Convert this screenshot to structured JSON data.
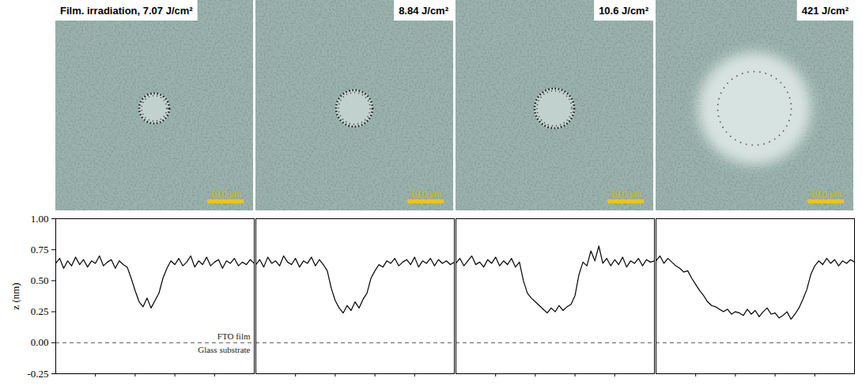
{
  "images": [
    {
      "title": "Film. irradiation, 7.07 J/cm²",
      "scale_bar": "10.0 μm"
    },
    {
      "title": "8.84 J/cm²",
      "scale_bar": "10.0 μm"
    },
    {
      "title": "10.6 J/cm²",
      "scale_bar": "10.0 μm"
    },
    {
      "title": "421 J/cm²",
      "scale_bar": "10.0 μm"
    }
  ],
  "chart_data": [
    {
      "type": "line",
      "y_label": "z (nm)",
      "color": "#000000",
      "tick_labels": "y",
      "x": [
        0,
        2,
        4,
        6,
        8,
        10,
        12,
        14,
        16,
        18,
        20,
        22,
        24,
        26,
        28,
        30,
        32,
        34,
        36,
        38,
        40,
        42,
        44,
        46,
        48,
        50,
        52,
        54,
        56,
        58,
        60,
        62,
        64,
        66,
        68,
        70,
        72,
        74,
        76,
        78,
        80,
        82,
        84,
        86,
        88,
        90,
        92,
        94,
        96,
        98,
        100
      ],
      "values": [
        0.64,
        0.68,
        0.6,
        0.66,
        0.62,
        0.69,
        0.63,
        0.67,
        0.61,
        0.66,
        0.64,
        0.7,
        0.62,
        0.65,
        0.67,
        0.6,
        0.66,
        0.63,
        0.61,
        0.52,
        0.42,
        0.33,
        0.29,
        0.36,
        0.28,
        0.34,
        0.4,
        0.52,
        0.6,
        0.66,
        0.63,
        0.68,
        0.62,
        0.65,
        0.7,
        0.61,
        0.66,
        0.63,
        0.69,
        0.62,
        0.65,
        0.67,
        0.6,
        0.66,
        0.64,
        0.68,
        0.62,
        0.65,
        0.63,
        0.67,
        0.64
      ],
      "xlim": [
        0,
        100
      ],
      "xticks": [
        20,
        40,
        60,
        80
      ],
      "ylim": [
        -0.25,
        1.0
      ],
      "yticks": [
        {
          "value": -0.25,
          "label": "-0.25"
        },
        {
          "value": 0,
          "label": "0.00"
        },
        {
          "value": 0.25,
          "label": "0.25"
        },
        {
          "value": 0.5,
          "label": "0.50"
        },
        {
          "value": 0.75,
          "label": "0.75"
        },
        {
          "value": 1.0,
          "label": "1.00"
        }
      ],
      "hline": {
        "value": 0,
        "line_style": "dashed",
        "labels": [
          "FTO film",
          "Glass substrate"
        ]
      }
    },
    {
      "type": "line",
      "color": "#000000",
      "tick_labels": false,
      "x": [
        0,
        2,
        4,
        6,
        8,
        10,
        12,
        14,
        16,
        18,
        20,
        22,
        24,
        26,
        28,
        30,
        32,
        34,
        36,
        38,
        40,
        42,
        44,
        46,
        48,
        50,
        52,
        54,
        56,
        58,
        60,
        62,
        64,
        66,
        68,
        70,
        72,
        74,
        76,
        78,
        80,
        82,
        84,
        86,
        88,
        90,
        92,
        94,
        96,
        98,
        100
      ],
      "values": [
        0.63,
        0.67,
        0.61,
        0.69,
        0.64,
        0.66,
        0.62,
        0.7,
        0.65,
        0.63,
        0.68,
        0.61,
        0.66,
        0.64,
        0.69,
        0.62,
        0.67,
        0.63,
        0.58,
        0.44,
        0.34,
        0.28,
        0.24,
        0.3,
        0.26,
        0.33,
        0.28,
        0.35,
        0.4,
        0.52,
        0.58,
        0.63,
        0.61,
        0.66,
        0.64,
        0.68,
        0.62,
        0.65,
        0.67,
        0.63,
        0.69,
        0.61,
        0.66,
        0.64,
        0.68,
        0.62,
        0.67,
        0.64,
        0.66,
        0.63,
        0.65
      ],
      "xlim": [
        0,
        100
      ],
      "xticks": [
        20,
        40,
        60,
        80
      ],
      "ylim": [
        -0.25,
        1.0
      ],
      "hline": {
        "value": 0,
        "line_style": "dashed"
      }
    },
    {
      "type": "line",
      "color": "#000000",
      "tick_labels": false,
      "x": [
        0,
        2,
        4,
        6,
        8,
        10,
        12,
        14,
        16,
        18,
        20,
        22,
        24,
        26,
        28,
        30,
        32,
        34,
        36,
        38,
        40,
        42,
        44,
        46,
        48,
        50,
        52,
        54,
        56,
        58,
        60,
        62,
        64,
        66,
        68,
        70,
        72,
        74,
        76,
        78,
        80,
        82,
        84,
        86,
        88,
        90,
        92,
        94,
        96,
        98,
        100
      ],
      "values": [
        0.64,
        0.68,
        0.62,
        0.66,
        0.7,
        0.63,
        0.65,
        0.61,
        0.67,
        0.64,
        0.69,
        0.62,
        0.66,
        0.63,
        0.68,
        0.61,
        0.65,
        0.5,
        0.4,
        0.36,
        0.33,
        0.3,
        0.27,
        0.24,
        0.28,
        0.25,
        0.3,
        0.26,
        0.29,
        0.31,
        0.38,
        0.55,
        0.65,
        0.62,
        0.74,
        0.66,
        0.78,
        0.64,
        0.68,
        0.62,
        0.67,
        0.63,
        0.69,
        0.61,
        0.66,
        0.64,
        0.68,
        0.62,
        0.67,
        0.65,
        0.66
      ],
      "xlim": [
        0,
        100
      ],
      "xticks": [
        20,
        40,
        60,
        80
      ],
      "ylim": [
        -0.25,
        1.0
      ],
      "hline": {
        "value": 0,
        "line_style": "dashed"
      }
    },
    {
      "type": "line",
      "color": "#000000",
      "tick_labels": false,
      "x": [
        0,
        2,
        4,
        6,
        8,
        10,
        12,
        14,
        16,
        18,
        20,
        22,
        24,
        26,
        28,
        30,
        32,
        34,
        36,
        38,
        40,
        42,
        44,
        46,
        48,
        50,
        52,
        54,
        56,
        58,
        60,
        62,
        64,
        66,
        68,
        70,
        72,
        74,
        76,
        78,
        80,
        82,
        84,
        86,
        88,
        90,
        92,
        94,
        96,
        98,
        100
      ],
      "values": [
        0.66,
        0.7,
        0.64,
        0.68,
        0.65,
        0.62,
        0.6,
        0.57,
        0.58,
        0.52,
        0.47,
        0.42,
        0.38,
        0.33,
        0.3,
        0.29,
        0.27,
        0.25,
        0.27,
        0.23,
        0.25,
        0.24,
        0.22,
        0.27,
        0.23,
        0.26,
        0.21,
        0.25,
        0.28,
        0.23,
        0.24,
        0.2,
        0.22,
        0.25,
        0.19,
        0.23,
        0.28,
        0.35,
        0.43,
        0.55,
        0.62,
        0.66,
        0.63,
        0.68,
        0.64,
        0.67,
        0.62,
        0.66,
        0.64,
        0.67,
        0.65
      ],
      "xlim": [
        0,
        100
      ],
      "xticks": [
        20,
        40,
        60,
        80
      ],
      "ylim": [
        -0.25,
        1.0
      ],
      "hline": {
        "value": 0,
        "line_style": "dashed"
      }
    }
  ]
}
